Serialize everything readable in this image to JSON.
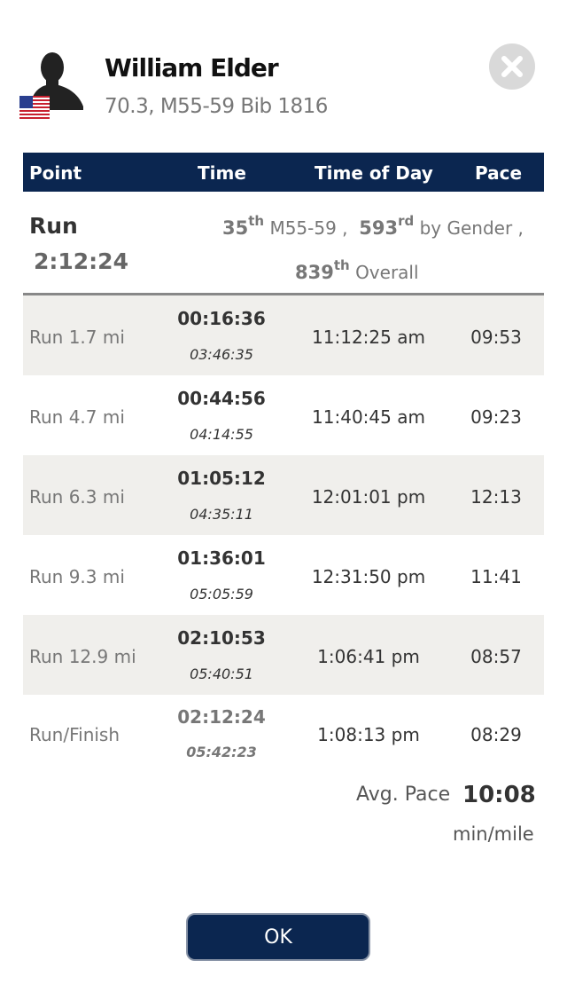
{
  "athlete": {
    "name": "William Elder",
    "subtitle": "70.3, M55-59 Bib 1816",
    "flag_icon": "us-flag-icon"
  },
  "table": {
    "headers": [
      "Point",
      "Time",
      "Time of Day",
      "Pace"
    ]
  },
  "summary": {
    "label": "Run",
    "time": "2:12:24",
    "division_rank": "35",
    "division_suffix": "th",
    "division_label": "M55-59 ,",
    "gender_rank": "593",
    "gender_suffix": "rd",
    "gender_label": "by Gender ,",
    "overall_rank": "839",
    "overall_suffix": "th",
    "overall_label": "Overall"
  },
  "rows": [
    {
      "point": "Run 1.7 mi",
      "split": "00:16:36",
      "cumulative": "03:46:35",
      "time_of_day": "11:12:25 am",
      "pace": "09:53"
    },
    {
      "point": "Run 4.7 mi",
      "split": "00:44:56",
      "cumulative": "04:14:55",
      "time_of_day": "11:40:45 am",
      "pace": "09:23"
    },
    {
      "point": "Run 6.3 mi",
      "split": "01:05:12",
      "cumulative": "04:35:11",
      "time_of_day": "12:01:01 pm",
      "pace": "12:13"
    },
    {
      "point": "Run 9.3 mi",
      "split": "01:36:01",
      "cumulative": "05:05:59",
      "time_of_day": "12:31:50 pm",
      "pace": "11:41"
    },
    {
      "point": "Run 12.9 mi",
      "split": "02:10:53",
      "cumulative": "05:40:51",
      "time_of_day": "1:06:41 pm",
      "pace": "08:57"
    },
    {
      "point": "Run/Finish",
      "split": "02:12:24",
      "cumulative": "05:42:23",
      "time_of_day": "1:08:13 pm",
      "pace": "08:29"
    }
  ],
  "average": {
    "label": "Avg. Pace",
    "value": "10:08",
    "unit": "min/mile"
  },
  "buttons": {
    "ok_label": "OK"
  },
  "colors": {
    "navy": "#0b2650",
    "row_shade": "#f0efec"
  }
}
